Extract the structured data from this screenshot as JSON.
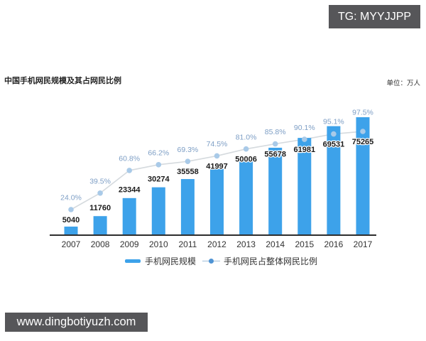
{
  "watermarks": {
    "top_right": "TG: MYYJJPP",
    "bottom_left": "www.dingbotiyuzh.com"
  },
  "header": {
    "title": "中国手机网民规模及其占网民比例",
    "unit_label": "单位：万人"
  },
  "chart_data": {
    "type": "bar",
    "title": "中国手机网民规模及其占网民比例",
    "unit": "万人",
    "categories": [
      "2007",
      "2008",
      "2009",
      "2010",
      "2011",
      "2012",
      "2013",
      "2014",
      "2015",
      "2016",
      "2017"
    ],
    "series": [
      {
        "name": "手机网民规模",
        "type": "bar",
        "values": [
          5040,
          11760,
          23344,
          30274,
          35558,
          41997,
          50006,
          55678,
          61981,
          69531,
          75265
        ]
      },
      {
        "name": "手机网民占整体网民比例",
        "type": "line",
        "unit": "%",
        "values": [
          24.0,
          39.5,
          60.8,
          66.2,
          69.3,
          74.5,
          81.0,
          85.8,
          90.1,
          95.1,
          97.5
        ]
      }
    ],
    "legend_position": "bottom",
    "grid": false,
    "colors": {
      "bar": "#3da2ea",
      "line": "#d5dade",
      "marker": "#a9cae8",
      "legend_marker": "#4f94d4",
      "pct_label": "#7d9ec5",
      "value_label": "#1a1a1a",
      "axis": "#2e2e2e",
      "year_label": "#333333"
    }
  }
}
